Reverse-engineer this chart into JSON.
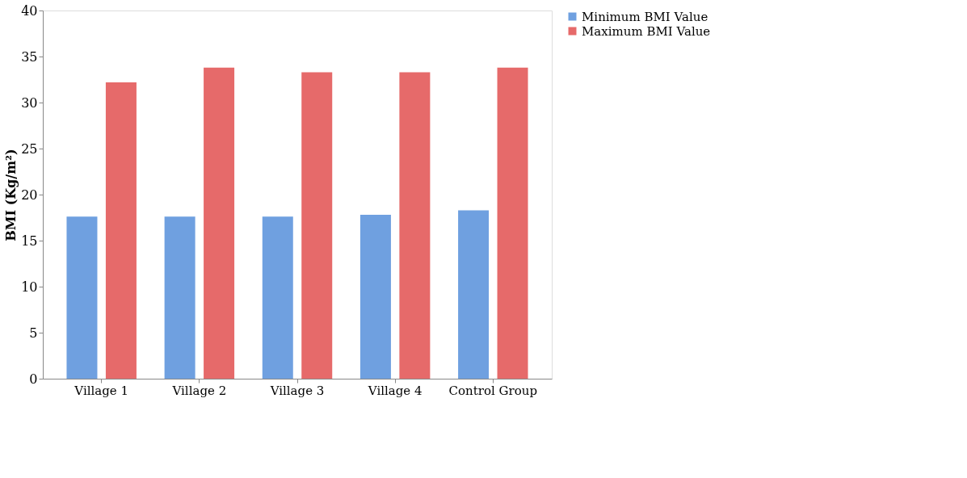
{
  "chart_data": {
    "type": "bar",
    "ylabel": "BMI (Kg/m²)",
    "categories": [
      "Village 1",
      "Village 2",
      "Village 3",
      "Village 4",
      "Control Group"
    ],
    "series": [
      {
        "name": "Minimum BMI Value",
        "color": "#6fa0e0",
        "values": [
          17.6,
          17.6,
          17.6,
          17.8,
          18.3
        ]
      },
      {
        "name": "Maximum BMI Value",
        "color": "#e66a6a",
        "values": [
          32.2,
          33.8,
          33.3,
          33.3,
          33.8
        ]
      }
    ],
    "ylim": [
      0,
      40
    ],
    "yticks": [
      0,
      5,
      10,
      15,
      20,
      25,
      30,
      35,
      40
    ],
    "grid": false,
    "legend": "right"
  }
}
